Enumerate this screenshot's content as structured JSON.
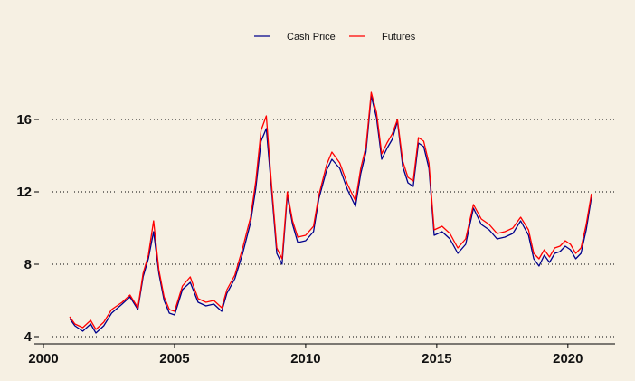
{
  "chart_data": {
    "type": "line",
    "title": "",
    "xlabel": "",
    "ylabel": "",
    "xlim": [
      2000,
      2021.8
    ],
    "ylim": [
      3.6,
      18.2
    ],
    "x_ticks": [
      2000,
      2005,
      2010,
      2015,
      2020
    ],
    "x_tick_labels": [
      "2000",
      "2005",
      "2010",
      "2015",
      "2020"
    ],
    "y_ticks": [
      4,
      8,
      12,
      16
    ],
    "y_tick_labels": [
      "4",
      "8",
      "12",
      "16"
    ],
    "grid": "horizontal dotted",
    "legend_position": "top-center",
    "series": [
      {
        "name": "Cash Price",
        "color": "#00008b",
        "x": [
          2001.0,
          2001.2,
          2001.5,
          2001.8,
          2002.0,
          2002.3,
          2002.6,
          2003.0,
          2003.3,
          2003.6,
          2003.8,
          2004.0,
          2004.2,
          2004.4,
          2004.6,
          2004.8,
          2005.0,
          2005.3,
          2005.6,
          2005.9,
          2006.2,
          2006.5,
          2006.8,
          2007.0,
          2007.3,
          2007.6,
          2007.9,
          2008.1,
          2008.3,
          2008.5,
          2008.7,
          2008.9,
          2009.1,
          2009.3,
          2009.5,
          2009.7,
          2010.0,
          2010.3,
          2010.5,
          2010.8,
          2011.0,
          2011.3,
          2011.6,
          2011.9,
          2012.1,
          2012.3,
          2012.5,
          2012.7,
          2012.9,
          2013.1,
          2013.3,
          2013.5,
          2013.7,
          2013.9,
          2014.1,
          2014.3,
          2014.5,
          2014.7,
          2014.9,
          2015.2,
          2015.5,
          2015.8,
          2016.1,
          2016.4,
          2016.7,
          2017.0,
          2017.3,
          2017.6,
          2017.9,
          2018.2,
          2018.5,
          2018.7,
          2018.9,
          2019.1,
          2019.3,
          2019.5,
          2019.7,
          2019.9,
          2020.1,
          2020.3,
          2020.5,
          2020.7,
          2020.9
        ],
        "values": [
          5.0,
          4.6,
          4.3,
          4.7,
          4.2,
          4.6,
          5.3,
          5.8,
          6.2,
          5.5,
          7.3,
          8.3,
          9.8,
          7.5,
          6.0,
          5.3,
          5.2,
          6.6,
          7.0,
          5.9,
          5.7,
          5.8,
          5.4,
          6.4,
          7.2,
          8.6,
          10.3,
          12.2,
          14.8,
          15.5,
          12.1,
          8.6,
          8.0,
          11.8,
          10.2,
          9.2,
          9.3,
          9.8,
          11.6,
          13.2,
          13.8,
          13.3,
          12.1,
          11.2,
          13.0,
          14.2,
          17.3,
          16.1,
          13.8,
          14.4,
          14.9,
          15.9,
          13.4,
          12.5,
          12.3,
          14.7,
          14.5,
          13.3,
          9.6,
          9.8,
          9.4,
          8.6,
          9.1,
          11.1,
          10.2,
          9.9,
          9.4,
          9.5,
          9.7,
          10.4,
          9.6,
          8.3,
          7.9,
          8.5,
          8.1,
          8.6,
          8.7,
          9.0,
          8.8,
          8.3,
          8.6,
          9.9,
          11.7
        ]
      },
      {
        "name": "Futures",
        "color": "#ff0000",
        "x": [
          2001.0,
          2001.2,
          2001.5,
          2001.8,
          2002.0,
          2002.3,
          2002.6,
          2003.0,
          2003.3,
          2003.6,
          2003.8,
          2004.0,
          2004.2,
          2004.4,
          2004.6,
          2004.8,
          2005.0,
          2005.3,
          2005.6,
          2005.9,
          2006.2,
          2006.5,
          2006.8,
          2007.0,
          2007.3,
          2007.6,
          2007.9,
          2008.1,
          2008.3,
          2008.5,
          2008.7,
          2008.9,
          2009.1,
          2009.3,
          2009.5,
          2009.7,
          2010.0,
          2010.3,
          2010.5,
          2010.8,
          2011.0,
          2011.3,
          2011.6,
          2011.9,
          2012.1,
          2012.3,
          2012.5,
          2012.7,
          2012.9,
          2013.1,
          2013.3,
          2013.5,
          2013.7,
          2013.9,
          2014.1,
          2014.3,
          2014.5,
          2014.7,
          2014.9,
          2015.2,
          2015.5,
          2015.8,
          2016.1,
          2016.4,
          2016.7,
          2017.0,
          2017.3,
          2017.6,
          2017.9,
          2018.2,
          2018.5,
          2018.7,
          2018.9,
          2019.1,
          2019.3,
          2019.5,
          2019.7,
          2019.9,
          2020.1,
          2020.3,
          2020.5,
          2020.7,
          2020.9
        ],
        "values": [
          5.1,
          4.7,
          4.5,
          4.9,
          4.4,
          4.8,
          5.5,
          5.9,
          6.3,
          5.6,
          7.5,
          8.5,
          10.4,
          7.7,
          6.2,
          5.5,
          5.4,
          6.8,
          7.3,
          6.1,
          5.9,
          6.0,
          5.6,
          6.6,
          7.4,
          8.9,
          10.6,
          12.6,
          15.4,
          16.2,
          12.4,
          8.9,
          8.3,
          12.0,
          10.4,
          9.5,
          9.6,
          10.1,
          11.8,
          13.5,
          14.2,
          13.6,
          12.4,
          11.5,
          13.3,
          14.5,
          17.5,
          16.4,
          14.1,
          14.7,
          15.2,
          16.0,
          13.7,
          12.8,
          12.6,
          15.0,
          14.8,
          13.6,
          9.9,
          10.1,
          9.7,
          8.9,
          9.4,
          11.3,
          10.5,
          10.2,
          9.7,
          9.8,
          10.0,
          10.6,
          9.9,
          8.6,
          8.3,
          8.8,
          8.4,
          8.9,
          9.0,
          9.3,
          9.1,
          8.6,
          8.9,
          10.2,
          11.9
        ]
      }
    ]
  }
}
